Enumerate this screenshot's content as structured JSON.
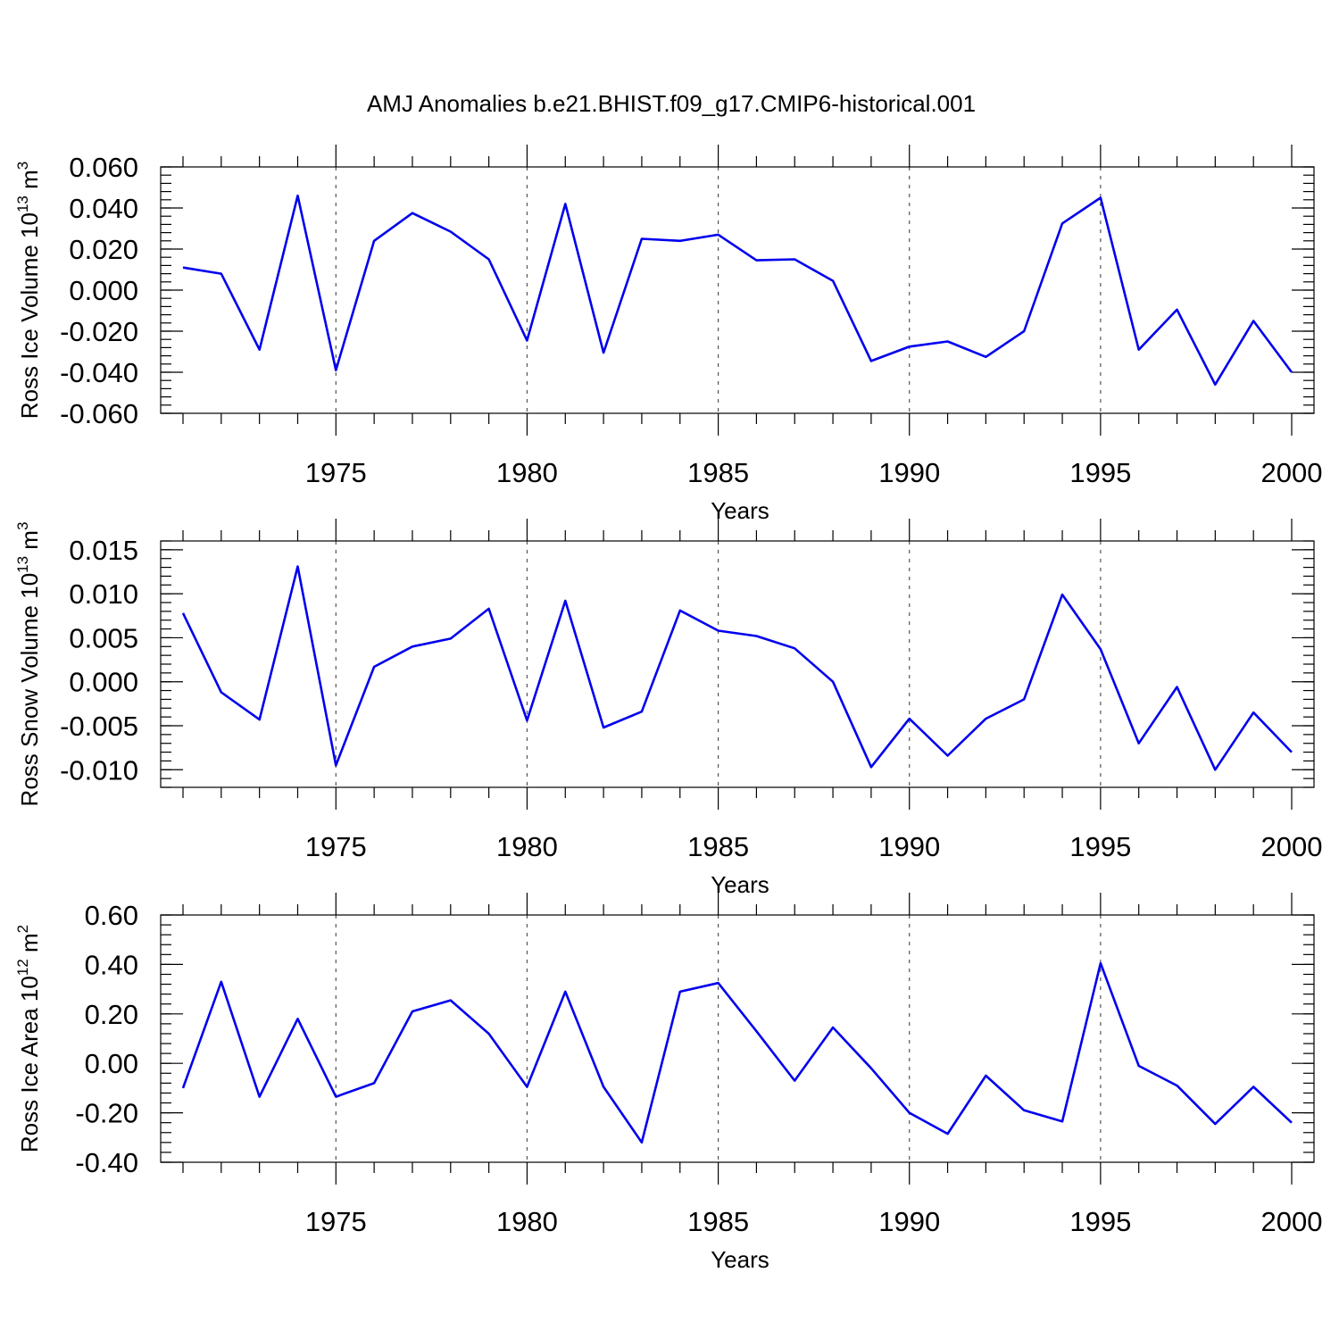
{
  "title": "AMJ Anomalies b.e21.BHIST.f09_g17.CMIP6-historical.001",
  "colors": {
    "line": "#0000ee",
    "frame": "#000000",
    "grid": "#555555"
  },
  "chart_data": [
    {
      "type": "line",
      "ylabel_main": "Ross Ice Volume 10",
      "ylabel_exp": "13",
      "ylabel_unit": "m",
      "ylabel_unit_exp": "3",
      "xlabel": "Years",
      "xlim": [
        1971,
        2000
      ],
      "ylim": [
        -0.06,
        0.06
      ],
      "yticks": [
        "-0.060",
        "-0.040",
        "-0.020",
        "0.000",
        "0.020",
        "0.040",
        "0.060"
      ],
      "ytick_values": [
        -0.06,
        -0.04,
        -0.02,
        0.0,
        0.02,
        0.04,
        0.06
      ],
      "xticks": [
        "1975",
        "1980",
        "1985",
        "1990",
        "1995",
        "2000"
      ],
      "xtick_values": [
        1975,
        1980,
        1985,
        1990,
        1995,
        2000
      ],
      "x": [
        1971,
        1972,
        1973,
        1974,
        1975,
        1976,
        1977,
        1978,
        1979,
        1980,
        1981,
        1982,
        1983,
        1984,
        1985,
        1986,
        1987,
        1988,
        1989,
        1990,
        1991,
        1992,
        1993,
        1994,
        1995,
        1996,
        1997,
        1998,
        1999,
        2000
      ],
      "y": [
        0.011,
        0.008,
        -0.029,
        0.046,
        -0.039,
        0.024,
        0.0375,
        0.0285,
        0.015,
        -0.0245,
        0.042,
        -0.0305,
        0.025,
        0.024,
        0.027,
        0.0145,
        0.015,
        0.0045,
        -0.0345,
        -0.0275,
        -0.025,
        -0.0325,
        -0.02,
        0.0325,
        0.045,
        -0.029,
        -0.0095,
        -0.046,
        -0.015,
        -0.04
      ]
    },
    {
      "type": "line",
      "ylabel_main": "Ross Snow Volume 10",
      "ylabel_exp": "13",
      "ylabel_unit": "m",
      "ylabel_unit_exp": "3",
      "xlabel": "Years",
      "xlim": [
        1971,
        2000
      ],
      "ylim": [
        -0.012,
        0.016
      ],
      "yticks": [
        "-0.010",
        "-0.005",
        "0.000",
        "0.005",
        "0.010",
        "0.015"
      ],
      "ytick_values": [
        -0.01,
        -0.005,
        0.0,
        0.005,
        0.01,
        0.015
      ],
      "xticks": [
        "1975",
        "1980",
        "1985",
        "1990",
        "1995",
        "2000"
      ],
      "xtick_values": [
        1975,
        1980,
        1985,
        1990,
        1995,
        2000
      ],
      "x": [
        1971,
        1972,
        1973,
        1974,
        1975,
        1976,
        1977,
        1978,
        1979,
        1980,
        1981,
        1982,
        1983,
        1984,
        1985,
        1986,
        1987,
        1988,
        1989,
        1990,
        1991,
        1992,
        1993,
        1994,
        1995,
        1996,
        1997,
        1998,
        1999,
        2000
      ],
      "y": [
        0.0078,
        -0.0012,
        -0.0043,
        0.0131,
        -0.0095,
        0.0017,
        0.004,
        0.0049,
        0.0083,
        -0.0044,
        0.0092,
        -0.0052,
        -0.0034,
        0.0081,
        0.0058,
        0.0052,
        0.0038,
        0.0,
        -0.0097,
        -0.0042,
        -0.0084,
        -0.0042,
        -0.002,
        0.0099,
        0.0037,
        -0.007,
        -0.0006,
        -0.01,
        -0.0035,
        -0.008
      ]
    },
    {
      "type": "line",
      "ylabel_main": "Ross Ice Area 10",
      "ylabel_exp": "12",
      "ylabel_unit": "m",
      "ylabel_unit_exp": "2",
      "xlabel": "Years",
      "xlim": [
        1971,
        2000
      ],
      "ylim": [
        -0.4,
        0.6
      ],
      "yticks": [
        "-0.40",
        "-0.20",
        "0.00",
        "0.20",
        "0.40",
        "0.60"
      ],
      "ytick_values": [
        -0.4,
        -0.2,
        0.0,
        0.2,
        0.4,
        0.6
      ],
      "xticks": [
        "1975",
        "1980",
        "1985",
        "1990",
        "1995",
        "2000"
      ],
      "xtick_values": [
        1975,
        1980,
        1985,
        1990,
        1995,
        2000
      ],
      "x": [
        1971,
        1972,
        1973,
        1974,
        1975,
        1976,
        1977,
        1978,
        1979,
        1980,
        1981,
        1982,
        1983,
        1984,
        1985,
        1986,
        1987,
        1988,
        1989,
        1990,
        1991,
        1992,
        1993,
        1994,
        1995,
        1996,
        1997,
        1998,
        1999,
        2000
      ],
      "y": [
        -0.1,
        0.33,
        -0.135,
        0.18,
        -0.135,
        -0.08,
        0.21,
        0.255,
        0.12,
        -0.095,
        0.29,
        -0.095,
        -0.32,
        0.29,
        0.325,
        0.13,
        -0.07,
        0.145,
        -0.02,
        -0.2,
        -0.285,
        -0.05,
        -0.19,
        -0.235,
        0.405,
        -0.01,
        -0.09,
        -0.245,
        -0.095,
        -0.24
      ]
    }
  ]
}
